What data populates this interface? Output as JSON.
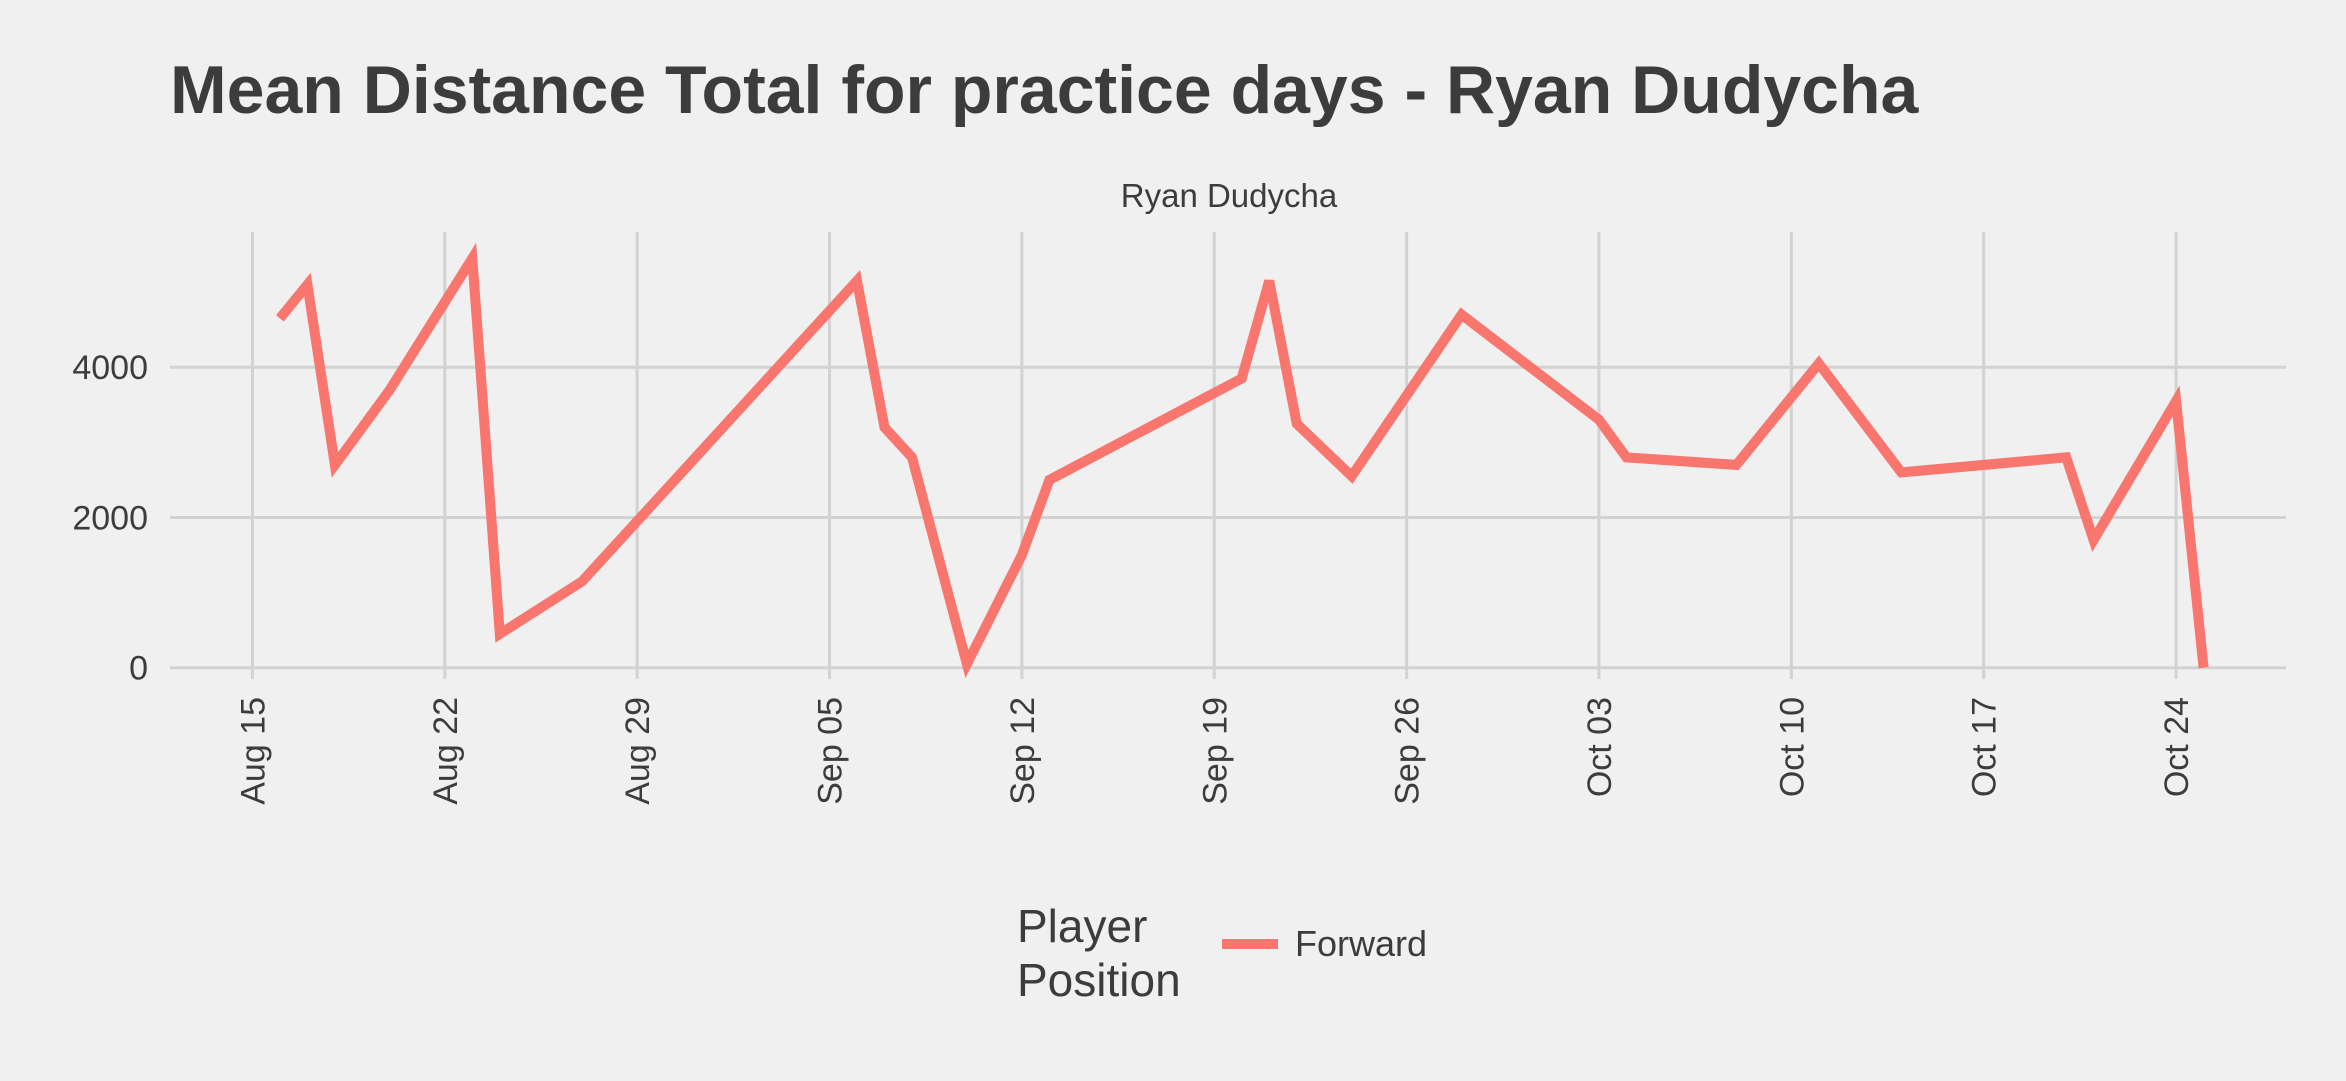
{
  "chart_data": {
    "type": "line",
    "title": "Mean Distance Total for practice days -  Ryan Dudycha",
    "facet_label": "Ryan Dudycha",
    "xlabel": "",
    "ylabel": "",
    "x_ticks": [
      "Aug 15",
      "Aug 22",
      "Aug 29",
      "Sep 05",
      "Sep 12",
      "Sep 19",
      "Sep 26",
      "Oct 03",
      "Oct 10",
      "Oct 17",
      "Oct 24"
    ],
    "y_ticks": [
      0,
      2000,
      4000
    ],
    "ylim": [
      -150,
      5800
    ],
    "xlim": [
      "2023-08-12",
      "2023-10-28"
    ],
    "grid": true,
    "legend": {
      "title_lines": [
        "Player",
        "Position"
      ],
      "position": "bottom"
    },
    "series": [
      {
        "name": "Forward",
        "color": "#f8766d",
        "points": [
          [
            "2023-08-16",
            4650
          ],
          [
            "2023-08-17",
            5100
          ],
          [
            "2023-08-18",
            2700
          ],
          [
            "2023-08-20",
            3700
          ],
          [
            "2023-08-23",
            5450
          ],
          [
            "2023-08-24",
            450
          ],
          [
            "2023-08-27",
            1150
          ],
          [
            "2023-09-06",
            5150
          ],
          [
            "2023-09-07",
            3200
          ],
          [
            "2023-09-08",
            2800
          ],
          [
            "2023-09-10",
            50
          ],
          [
            "2023-09-12",
            1500
          ],
          [
            "2023-09-13",
            2500
          ],
          [
            "2023-09-20",
            3850
          ],
          [
            "2023-09-21",
            5150
          ],
          [
            "2023-09-22",
            3250
          ],
          [
            "2023-09-24",
            2550
          ],
          [
            "2023-09-28",
            4700
          ],
          [
            "2023-10-03",
            3300
          ],
          [
            "2023-10-04",
            2800
          ],
          [
            "2023-10-08",
            2700
          ],
          [
            "2023-10-11",
            4050
          ],
          [
            "2023-10-14",
            2600
          ],
          [
            "2023-10-20",
            2800
          ],
          [
            "2023-10-21",
            1700
          ],
          [
            "2023-10-24",
            3550
          ],
          [
            "2023-10-25",
            0
          ]
        ]
      }
    ]
  }
}
